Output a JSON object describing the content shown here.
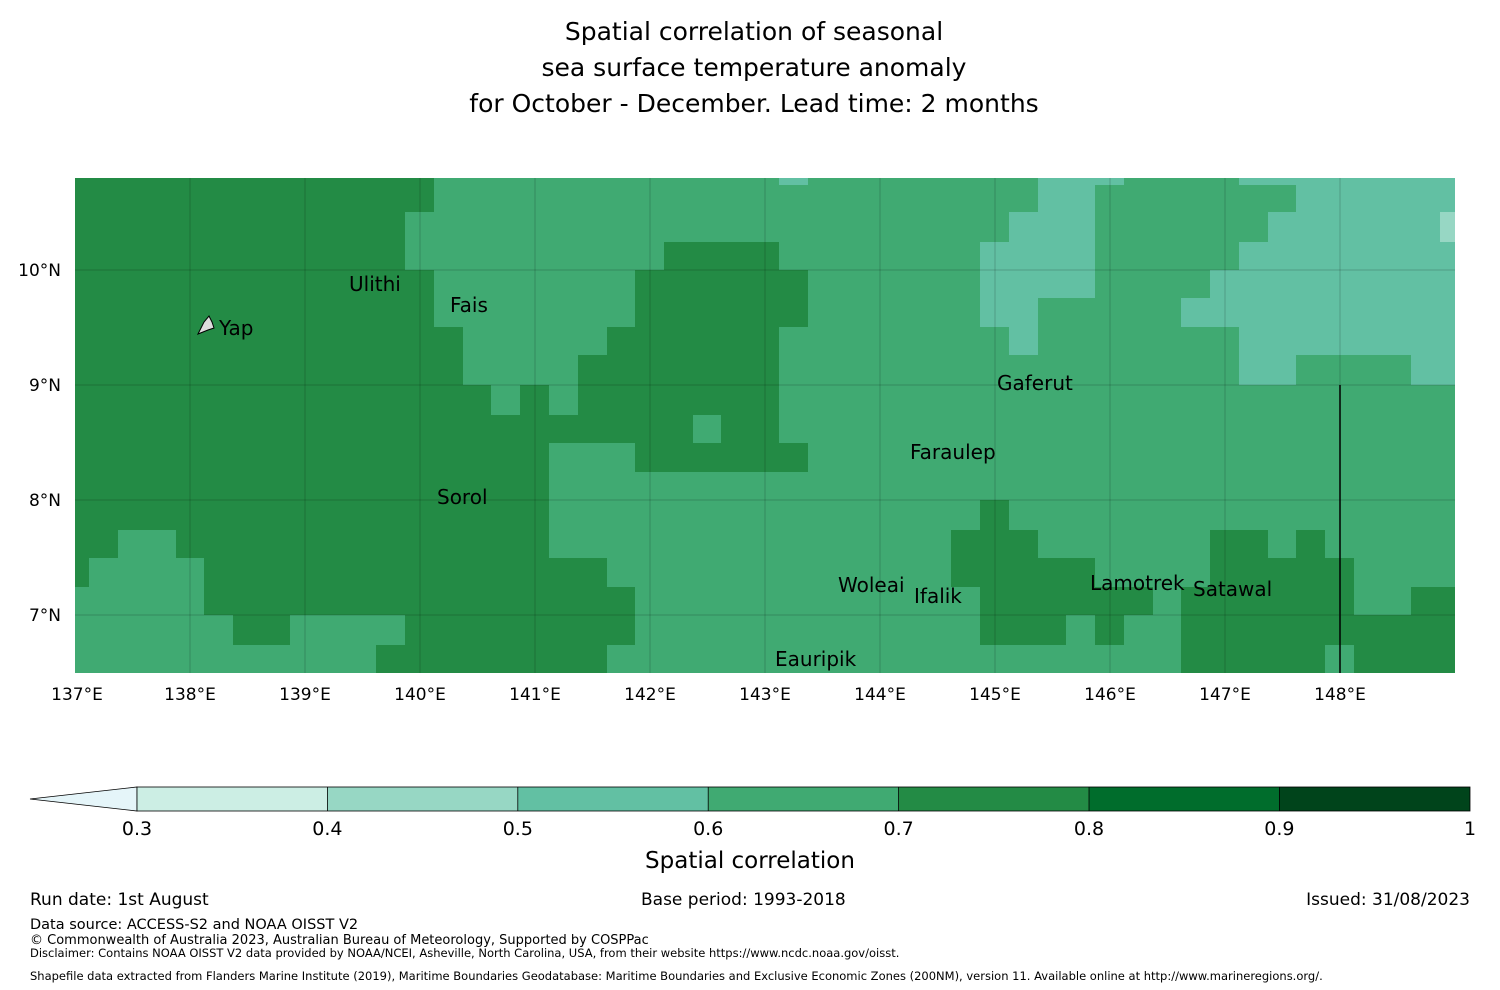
{
  "title": {
    "line1": "Spatial correlation of seasonal",
    "line2": "sea surface temperature anomaly",
    "line3": "for October - December. Lead time: 2 months"
  },
  "map": {
    "lon_labels": [
      "137°E",
      "138°E",
      "139°E",
      "140°E",
      "141°E",
      "142°E",
      "143°E",
      "144°E",
      "145°E",
      "146°E",
      "147°E",
      "148°E"
    ],
    "lat_labels": [
      "10°N",
      "9°N",
      "8°N",
      "7°N"
    ],
    "places": [
      "Ulithi",
      "Fais",
      "Yap",
      "Gaferut",
      "Faraulep",
      "Sorol",
      "Woleai",
      "Ifalik",
      "Lamotrek",
      "Satawal",
      "Eauripik"
    ],
    "colors": {
      "r03_04": "#cceee4",
      "r04_05": "#97d7c4",
      "r05_06": "#62c0a3",
      "r06_07": "#40aa72",
      "r07_08": "#238b45",
      "r08_09": "#006d2c",
      "r09_10": "#00441b"
    }
  },
  "colorbar": {
    "ticks": [
      "0.3",
      "0.4",
      "0.5",
      "0.6",
      "0.7",
      "0.8",
      "0.9",
      "1"
    ],
    "label": "Spatial correlation",
    "extend_color": "#e5f5f9"
  },
  "footer": {
    "run_date": "Run date: 1st August",
    "base_period": "Base period: 1993-2018",
    "issued": "Issued: 31/08/2023",
    "data_source": "Data source: ACCESS-S2 and NOAA OISST V2",
    "copyright": "© Commonwealth of Australia 2023, Australian Bureau of Meteorology, Supported by COSPPac",
    "disclaimer": "Disclaimer: Contains NOAA OISST V2 data provided by NOAA/NCEI, Asheville, North Carolina, USA, from their website https://www.ncdc.noaa.gov/oisst.",
    "shapefile": "Shapefile data extracted from Flanders Marine Institute (2019), Maritime Boundaries Geodatabase: Maritime Boundaries and Exclusive Economic Zones (200NM), version 11. Available online at http://www.marineregions.org/."
  }
}
